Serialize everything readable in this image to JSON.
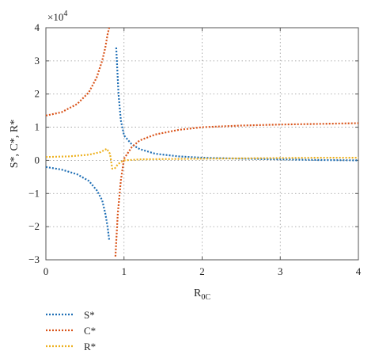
{
  "chart_data": {
    "type": "line",
    "xlabel": "R",
    "xlabel_sub": "0C",
    "ylabel": "S*, C*, R*",
    "y_exponent_label": "×10",
    "y_exponent_power": "4",
    "xlim": [
      0,
      4
    ],
    "ylim": [
      -3,
      4
    ],
    "y_scale": 10000,
    "x_ticks": [
      0,
      1,
      2,
      3,
      4
    ],
    "y_ticks": [
      -3,
      -2,
      -1,
      0,
      1,
      2,
      3,
      4
    ],
    "x_tick_labels": [
      "0",
      "1",
      "2",
      "3",
      "4"
    ],
    "y_tick_labels": [
      "−3",
      "−2",
      "−1",
      "0",
      "1",
      "2",
      "3",
      "4"
    ],
    "grid": true,
    "line_style": "dotted",
    "legend_position": "below",
    "series": [
      {
        "name": "S*",
        "color": "#1f6fb5",
        "segments": [
          {
            "x": [
              0,
              0.2,
              0.4,
              0.55,
              0.65,
              0.72,
              0.76,
              0.79,
              0.81
            ],
            "y": [
              -0.2,
              -0.28,
              -0.42,
              -0.62,
              -0.9,
              -1.2,
              -1.6,
              -2.0,
              -2.4
            ]
          },
          {
            "x": [
              0.9,
              0.93,
              0.96,
              1.0,
              1.1,
              1.2,
              1.4,
              1.7,
              2.0,
              2.5,
              3.0,
              3.5,
              4.0
            ],
            "y": [
              3.4,
              2.0,
              1.2,
              0.75,
              0.48,
              0.34,
              0.2,
              0.12,
              0.08,
              0.05,
              0.03,
              0.01,
              0.0
            ]
          }
        ]
      },
      {
        "name": "C*",
        "color": "#d95319",
        "segments": [
          {
            "x": [
              0,
              0.2,
              0.4,
              0.55,
              0.65,
              0.72,
              0.76,
              0.79,
              0.81
            ],
            "y": [
              1.35,
              1.45,
              1.7,
              2.05,
              2.5,
              3.0,
              3.4,
              3.8,
              4.0
            ]
          },
          {
            "x": [
              0.89,
              0.92,
              0.96,
              1.0,
              1.1,
              1.2,
              1.4,
              1.7,
              2.0,
              2.5,
              3.0,
              3.5,
              4.0
            ],
            "y": [
              -2.9,
              -1.6,
              -0.6,
              0.05,
              0.4,
              0.6,
              0.78,
              0.92,
              1.0,
              1.05,
              1.08,
              1.1,
              1.12
            ]
          }
        ]
      },
      {
        "name": "R*",
        "color": "#edb120",
        "segments": [
          {
            "x": [
              0,
              0.3,
              0.55,
              0.7,
              0.78,
              0.82,
              0.85,
              0.88,
              0.92,
              0.96,
              1.0,
              1.2,
              1.5,
              2.0,
              2.5,
              3.0,
              3.5,
              4.0
            ],
            "y": [
              0.1,
              0.12,
              0.17,
              0.25,
              0.35,
              0.2,
              -0.25,
              -0.25,
              -0.12,
              -0.05,
              0.0,
              0.03,
              0.04,
              0.05,
              0.06,
              0.07,
              0.08,
              0.08
            ]
          }
        ]
      }
    ]
  }
}
